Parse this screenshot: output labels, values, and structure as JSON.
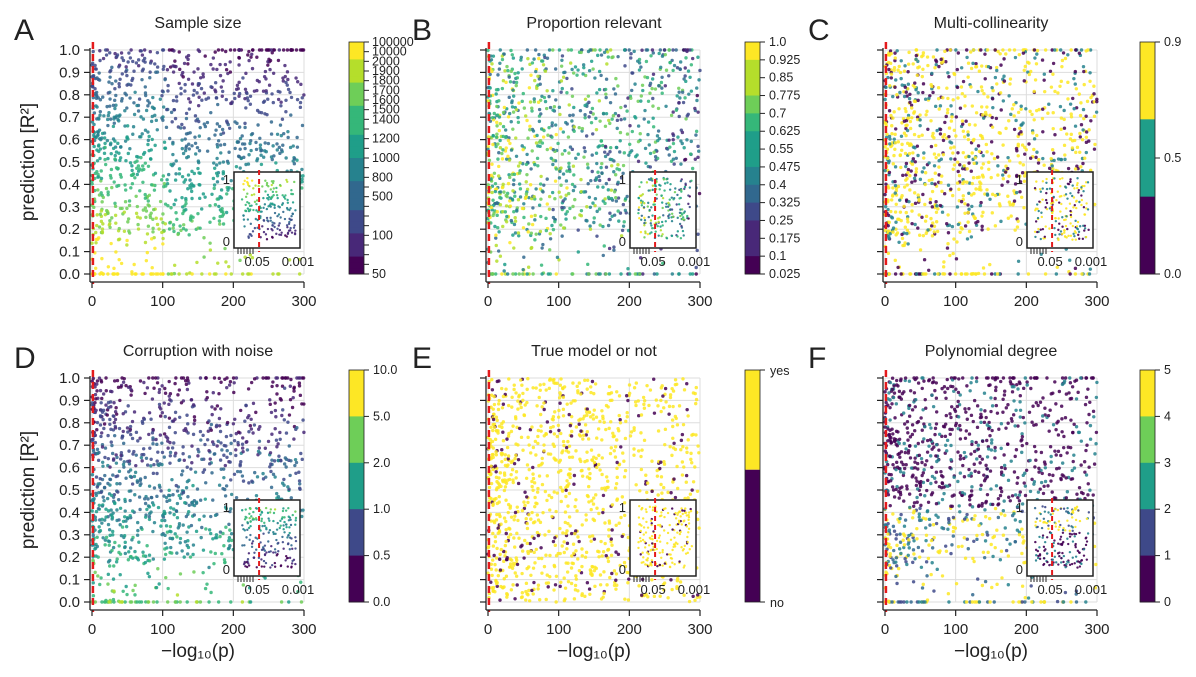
{
  "chart_data": [
    {
      "panel": "A",
      "type": "scatter",
      "title": "Sample size",
      "xlabel": "",
      "ylabel": "prediction [R²]",
      "xlim": [
        0,
        300
      ],
      "ylim": [
        0,
        1
      ],
      "x_ticks": [
        "0",
        "100",
        "200",
        "300"
      ],
      "y_ticks": [
        "0.0",
        "0.1",
        "0.2",
        "0.3",
        "0.4",
        "0.5",
        "0.6",
        "0.7",
        "0.8",
        "0.9",
        "1.0"
      ],
      "threshold_x": 1.3,
      "threshold_color": "#e41a1c",
      "colorbar": {
        "type": "continuous",
        "labels": [
          "100000",
          "10000",
          "2000",
          "1900",
          "1800",
          "1700",
          "1600",
          "1500",
          "1400",
          "1200",
          "1000",
          "800",
          "500",
          "100",
          "50"
        ],
        "n_ticks": 25
      },
      "inset": {
        "y_ticks": [
          "1",
          "0"
        ],
        "x_ticks": [
          "0.05",
          "0.001"
        ]
      }
    },
    {
      "panel": "B",
      "type": "scatter",
      "title": "Proportion relevant",
      "xlabel": "",
      "ylabel": "",
      "xlim": [
        0,
        300
      ],
      "ylim": [
        0,
        1
      ],
      "x_ticks": [
        "0",
        "100",
        "200",
        "300"
      ],
      "threshold_x": 1.3,
      "threshold_color": "#e41a1c",
      "colorbar": {
        "type": "discrete",
        "labels": [
          "1.0",
          "0.925",
          "0.85",
          "0.775",
          "0.7",
          "0.625",
          "0.55",
          "0.475",
          "0.4",
          "0.325",
          "0.25",
          "0.175",
          "0.1",
          "0.025"
        ]
      },
      "inset": {
        "y_ticks": [
          "1",
          "0"
        ],
        "x_ticks": [
          "0.05",
          "0.001"
        ]
      }
    },
    {
      "panel": "C",
      "type": "scatter",
      "title": "Multi-collinearity",
      "xlabel": "",
      "ylabel": "",
      "xlim": [
        0,
        300
      ],
      "ylim": [
        0,
        1
      ],
      "x_ticks": [
        "0",
        "100",
        "200",
        "300"
      ],
      "threshold_x": 1.3,
      "threshold_color": "#e41a1c",
      "colorbar": {
        "type": "discrete",
        "labels": [
          "0.9",
          "0.5",
          "0.0"
        ]
      },
      "inset": {
        "y_ticks": [
          "1",
          "0"
        ],
        "x_ticks": [
          "0.05",
          "0.001"
        ]
      }
    },
    {
      "panel": "D",
      "type": "scatter",
      "title": "Corruption with noise",
      "xlabel": "−log₁₀(p)",
      "ylabel": "prediction [R²]",
      "xlim": [
        0,
        300
      ],
      "ylim": [
        0,
        1
      ],
      "x_ticks": [
        "0",
        "100",
        "200",
        "300"
      ],
      "y_ticks": [
        "0.0",
        "0.1",
        "0.2",
        "0.3",
        "0.4",
        "0.5",
        "0.6",
        "0.7",
        "0.8",
        "0.9",
        "1.0"
      ],
      "threshold_x": 1.3,
      "threshold_color": "#e41a1c",
      "colorbar": {
        "type": "discrete",
        "labels": [
          "10.0",
          "5.0",
          "2.0",
          "1.0",
          "0.5",
          "0.0"
        ]
      },
      "inset": {
        "y_ticks": [
          "1",
          "0"
        ],
        "x_ticks": [
          "0.05",
          "0.001"
        ]
      }
    },
    {
      "panel": "E",
      "type": "scatter",
      "title": "True model or not",
      "xlabel": "−log₁₀(p)",
      "ylabel": "",
      "xlim": [
        0,
        300
      ],
      "ylim": [
        0,
        1
      ],
      "x_ticks": [
        "0",
        "100",
        "200",
        "300"
      ],
      "threshold_x": 1.3,
      "threshold_color": "#e41a1c",
      "colorbar": {
        "type": "discrete",
        "labels": [
          "yes",
          "no"
        ]
      },
      "inset": {
        "y_ticks": [
          "1",
          "0"
        ],
        "x_ticks": [
          "0.05",
          "0.001"
        ]
      }
    },
    {
      "panel": "F",
      "type": "scatter",
      "title": "Polynomial degree",
      "xlabel": "−log₁₀(p)",
      "ylabel": "",
      "xlim": [
        0,
        300
      ],
      "ylim": [
        0,
        1
      ],
      "x_ticks": [
        "0",
        "100",
        "200",
        "300"
      ],
      "threshold_x": 1.3,
      "threshold_color": "#e41a1c",
      "colorbar": {
        "type": "discrete",
        "labels": [
          "5",
          "4",
          "3",
          "2",
          "1",
          "0"
        ]
      },
      "inset": {
        "y_ticks": [
          "1",
          "0"
        ],
        "x_ticks": [
          "0.05",
          "0.001"
        ]
      }
    }
  ],
  "palette": {
    "viridis": [
      "#440154",
      "#482878",
      "#3e4989",
      "#31688e",
      "#26828e",
      "#1f9e89",
      "#35b779",
      "#6ece58",
      "#b5de2b",
      "#fde725"
    ],
    "threshold": "#e41a1c",
    "grid": "#dddddd"
  }
}
